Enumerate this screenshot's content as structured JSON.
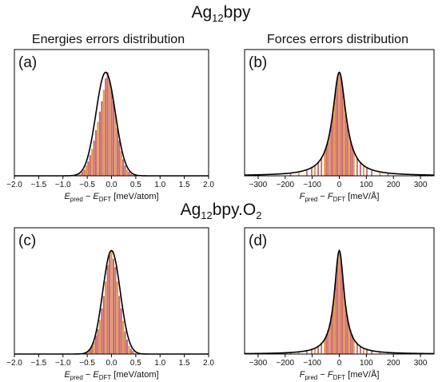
{
  "figure": {
    "title_top": {
      "base": "Ag",
      "sub": "12",
      "rest": "bpy"
    },
    "title_bottom": {
      "base": "Ag",
      "sub": "12",
      "rest": "bpy.O",
      "sub2": "2"
    },
    "col_energy": "Energies errors distribution",
    "col_force": "Forces errors distribution",
    "energy_xlabel": {
      "a": "E",
      "asub": "pred",
      "mid": " − ",
      "b": "E",
      "bsub": "DFT",
      "unit": " [meV/atom]"
    },
    "force_xlabel": {
      "a": "F",
      "asub": "pred",
      "mid": " − ",
      "b": "F",
      "bsub": "DFT",
      "unit": " [meV/Å]"
    },
    "colors": {
      "bar": "#c8585f",
      "bar_alt": "#e0902c",
      "fit": "#000000"
    }
  },
  "chart_data": [
    {
      "id": "a",
      "panel_label": "(a)",
      "type": "bar",
      "chart": "histogram with fitted curve",
      "xlim": [
        -2.0,
        2.0
      ],
      "xticks": [
        -2.0,
        -1.5,
        -1.0,
        -0.5,
        0.0,
        0.5,
        1.0,
        1.5,
        2.0
      ],
      "tick_labels": [
        "−2.0",
        "−1.5",
        "−1.0",
        "−0.5",
        "0.0",
        "0.5",
        "1.0",
        "1.5",
        "2.0"
      ],
      "y_tick_labels": false,
      "fit": {
        "center": -0.12,
        "width": 0.2,
        "shape": "gaussian"
      },
      "bin_width": 0.04,
      "bins": [
        [
          -0.68,
          0.01
        ],
        [
          -0.64,
          0.02
        ],
        [
          -0.6,
          0.04
        ],
        [
          -0.56,
          0.06
        ],
        [
          -0.52,
          0.1
        ],
        [
          -0.48,
          0.14
        ],
        [
          -0.44,
          0.2
        ],
        [
          -0.4,
          0.26
        ],
        [
          -0.36,
          0.34
        ],
        [
          -0.32,
          0.44
        ],
        [
          -0.28,
          0.52
        ],
        [
          -0.24,
          0.62
        ],
        [
          -0.2,
          0.72
        ],
        [
          -0.16,
          0.83
        ],
        [
          -0.12,
          0.94
        ],
        [
          -0.08,
          1.0
        ],
        [
          -0.04,
          0.92
        ],
        [
          0.0,
          0.84
        ],
        [
          0.04,
          0.72
        ],
        [
          0.08,
          0.6
        ],
        [
          0.12,
          0.46
        ],
        [
          0.16,
          0.34
        ],
        [
          0.2,
          0.24
        ],
        [
          0.24,
          0.16
        ],
        [
          0.28,
          0.1
        ],
        [
          0.32,
          0.06
        ],
        [
          0.36,
          0.04
        ],
        [
          0.4,
          0.02
        ],
        [
          0.44,
          0.01
        ]
      ]
    },
    {
      "id": "b",
      "panel_label": "(b)",
      "type": "bar",
      "chart": "histogram with fitted curve",
      "xlim": [
        -350,
        350
      ],
      "xticks": [
        -300,
        -200,
        -100,
        0,
        100,
        200,
        300
      ],
      "tick_labels": [
        "−300",
        "−200",
        "−100",
        "0",
        "100",
        "200",
        "300"
      ],
      "y_tick_labels": false,
      "fit": {
        "center": 0,
        "width": 30,
        "shape": "lorentzian"
      },
      "bin_width": 6,
      "bins": [
        [
          -180,
          0.02
        ],
        [
          -150,
          0.03
        ],
        [
          -120,
          0.05
        ],
        [
          -102,
          0.08
        ],
        [
          -90,
          0.1
        ],
        [
          -78,
          0.13
        ],
        [
          -66,
          0.17
        ],
        [
          -54,
          0.23
        ],
        [
          -48,
          0.28
        ],
        [
          -42,
          0.33
        ],
        [
          -36,
          0.4
        ],
        [
          -30,
          0.49
        ],
        [
          -24,
          0.6
        ],
        [
          -18,
          0.72
        ],
        [
          -12,
          0.86
        ],
        [
          -6,
          0.96
        ],
        [
          0,
          1.0
        ],
        [
          6,
          0.96
        ],
        [
          12,
          0.86
        ],
        [
          18,
          0.72
        ],
        [
          24,
          0.6
        ],
        [
          30,
          0.49
        ],
        [
          36,
          0.4
        ],
        [
          42,
          0.33
        ],
        [
          48,
          0.28
        ],
        [
          54,
          0.23
        ],
        [
          66,
          0.17
        ],
        [
          78,
          0.13
        ],
        [
          90,
          0.1
        ],
        [
          102,
          0.08
        ],
        [
          120,
          0.05
        ],
        [
          150,
          0.03
        ],
        [
          180,
          0.02
        ]
      ]
    },
    {
      "id": "c",
      "panel_label": "(c)",
      "type": "bar",
      "chart": "histogram with fitted curve",
      "xlim": [
        -2.0,
        2.0
      ],
      "xticks": [
        -2.0,
        -1.5,
        -1.0,
        -0.5,
        0.0,
        0.5,
        1.0,
        1.5,
        2.0
      ],
      "tick_labels": [
        "−2.0",
        "−1.5",
        "−1.0",
        "−0.5",
        "0.0",
        "0.5",
        "1.0",
        "1.5",
        "2.0"
      ],
      "y_tick_labels": false,
      "fit": {
        "center": 0.0,
        "width": 0.18,
        "shape": "gaussian"
      },
      "bin_width": 0.04,
      "bins": [
        [
          -0.52,
          0.01
        ],
        [
          -0.48,
          0.03
        ],
        [
          -0.44,
          0.05
        ],
        [
          -0.4,
          0.08
        ],
        [
          -0.36,
          0.12
        ],
        [
          -0.32,
          0.18
        ],
        [
          -0.28,
          0.24
        ],
        [
          -0.24,
          0.33
        ],
        [
          -0.2,
          0.44
        ],
        [
          -0.16,
          0.56
        ],
        [
          -0.12,
          0.7
        ],
        [
          -0.08,
          0.86
        ],
        [
          -0.04,
          0.96
        ],
        [
          0.0,
          1.0
        ],
        [
          0.04,
          0.92
        ],
        [
          0.08,
          0.84
        ],
        [
          0.12,
          0.7
        ],
        [
          0.16,
          0.56
        ],
        [
          0.2,
          0.44
        ],
        [
          0.24,
          0.32
        ],
        [
          0.28,
          0.22
        ],
        [
          0.32,
          0.14
        ],
        [
          0.36,
          0.08
        ],
        [
          0.4,
          0.05
        ],
        [
          0.44,
          0.03
        ],
        [
          0.48,
          0.01
        ]
      ]
    },
    {
      "id": "d",
      "panel_label": "(d)",
      "type": "bar",
      "chart": "histogram with fitted curve",
      "xlim": [
        -350,
        350
      ],
      "xticks": [
        -300,
        -200,
        -100,
        0,
        100,
        200,
        300
      ],
      "tick_labels": [
        "−300",
        "−200",
        "−100",
        "0",
        "100",
        "200",
        "300"
      ],
      "y_tick_labels": false,
      "fit": {
        "center": 0,
        "width": 22,
        "shape": "lorentzian"
      },
      "bin_width": 6,
      "bins": [
        [
          -180,
          0.01
        ],
        [
          -150,
          0.02
        ],
        [
          -120,
          0.03
        ],
        [
          -102,
          0.05
        ],
        [
          -90,
          0.06
        ],
        [
          -78,
          0.08
        ],
        [
          -66,
          0.11
        ],
        [
          -54,
          0.15
        ],
        [
          -48,
          0.19
        ],
        [
          -42,
          0.23
        ],
        [
          -36,
          0.29
        ],
        [
          -30,
          0.37
        ],
        [
          -24,
          0.47
        ],
        [
          -18,
          0.6
        ],
        [
          -12,
          0.77
        ],
        [
          -6,
          0.93
        ],
        [
          0,
          1.0
        ],
        [
          6,
          0.93
        ],
        [
          12,
          0.77
        ],
        [
          18,
          0.6
        ],
        [
          24,
          0.47
        ],
        [
          30,
          0.37
        ],
        [
          36,
          0.29
        ],
        [
          42,
          0.23
        ],
        [
          48,
          0.19
        ],
        [
          54,
          0.15
        ],
        [
          66,
          0.11
        ],
        [
          78,
          0.08
        ],
        [
          90,
          0.06
        ],
        [
          102,
          0.05
        ],
        [
          120,
          0.03
        ],
        [
          150,
          0.02
        ],
        [
          180,
          0.01
        ]
      ]
    }
  ]
}
